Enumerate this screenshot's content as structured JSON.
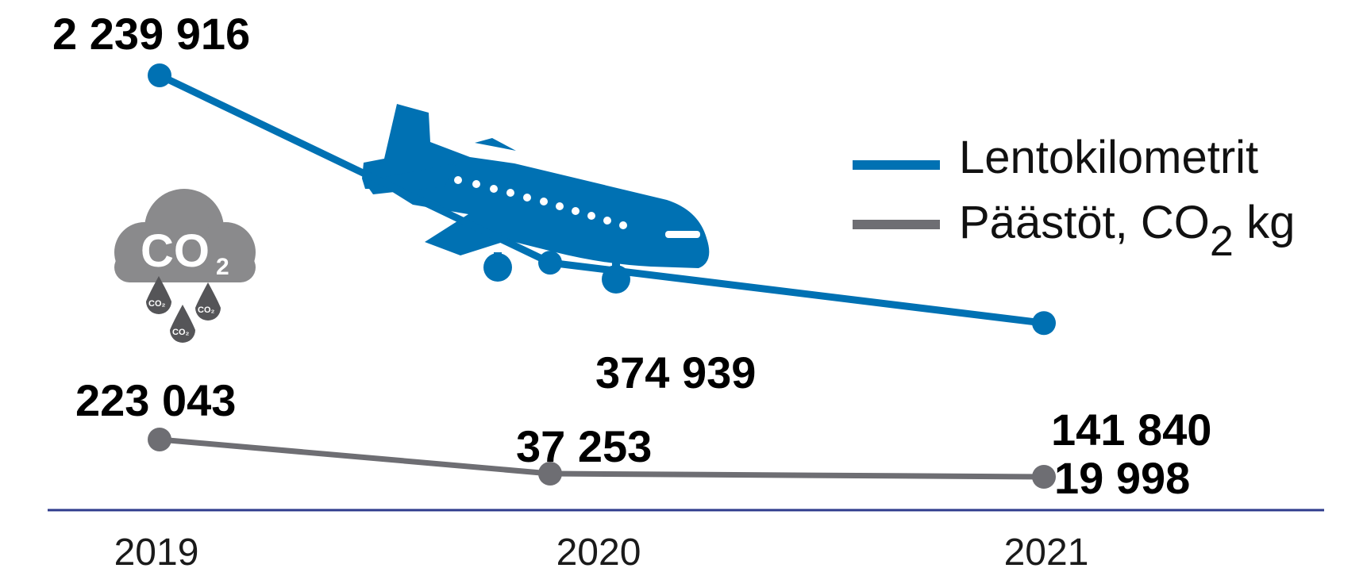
{
  "chart_data": {
    "type": "line",
    "categories": [
      "2019",
      "2020",
      "2021"
    ],
    "series": [
      {
        "name": "Lentokilometrit",
        "values": [
          2239916,
          374939,
          141840
        ],
        "labels": [
          "2 239 916",
          "374 939",
          "141 840"
        ],
        "color": "#0071b3"
      },
      {
        "name": "Päästöt, CO",
        "name_sub": "2",
        "name_suffix": " kg",
        "values": [
          223043,
          37253,
          19998
        ],
        "labels": [
          "223 043",
          "37 253",
          "19 998"
        ],
        "color": "#6e6e73"
      }
    ],
    "legend": {
      "position": "right"
    },
    "grid": false
  },
  "icons": {
    "airplane": "airplane-icon",
    "cloud": "co2-cloud-icon",
    "cloud_text": "CO",
    "cloud_sub": "2"
  },
  "axis_color": "#2e3b8c"
}
